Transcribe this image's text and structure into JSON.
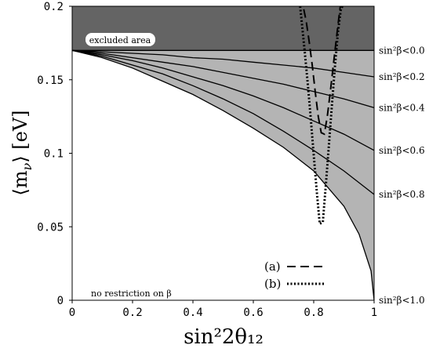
{
  "chart_data": {
    "type": "line",
    "title": "",
    "xlabel": "sin²2θ₁₂",
    "ylabel_main": "⟨m",
    "ylabel_sub": "ν",
    "ylabel_tail": "⟩ [eV]",
    "xlim": [
      0,
      1
    ],
    "ylim": [
      0,
      0.2
    ],
    "x_ticks": [
      "0",
      "0.2",
      "0.4",
      "0.6",
      "0.8",
      "1"
    ],
    "y_ticks": [
      "0",
      "0.05",
      "0.1",
      "0.15",
      "0.2"
    ],
    "excluded_area": {
      "label": "excluded area",
      "y_min": 0.17,
      "y_max": 0.2,
      "color": "#646464"
    },
    "allowed_region_color": "#b4b4b4",
    "m0": 0.17,
    "series": [
      {
        "name": "sin²β<0.0",
        "x": [
          0,
          1
        ],
        "y": [
          0.17,
          0.17
        ]
      },
      {
        "name": "sin²β<0.2",
        "x": [
          0,
          0.1,
          0.2,
          0.3,
          0.4,
          0.5,
          0.6,
          0.7,
          0.8,
          0.9,
          1.0
        ],
        "y": [
          0.17,
          0.169,
          0.168,
          0.167,
          0.165,
          0.164,
          0.162,
          0.16,
          0.158,
          0.155,
          0.152
        ]
      },
      {
        "name": "sin²β<0.4",
        "x": [
          0,
          0.1,
          0.2,
          0.3,
          0.4,
          0.5,
          0.6,
          0.7,
          0.8,
          0.9,
          1.0
        ],
        "y": [
          0.17,
          0.168,
          0.165,
          0.162,
          0.159,
          0.155,
          0.151,
          0.147,
          0.142,
          0.137,
          0.131
        ]
      },
      {
        "name": "sin²β<0.6",
        "x": [
          0,
          0.1,
          0.2,
          0.3,
          0.4,
          0.5,
          0.6,
          0.7,
          0.8,
          0.9,
          1.0
        ],
        "y": [
          0.17,
          0.167,
          0.163,
          0.158,
          0.152,
          0.146,
          0.139,
          0.131,
          0.122,
          0.113,
          0.102
        ]
      },
      {
        "name": "sin²β<0.8",
        "x": [
          0,
          0.1,
          0.2,
          0.3,
          0.4,
          0.5,
          0.6,
          0.7,
          0.8,
          0.9,
          1.0
        ],
        "y": [
          0.17,
          0.166,
          0.16,
          0.154,
          0.146,
          0.137,
          0.127,
          0.115,
          0.102,
          0.088,
          0.072
        ]
      },
      {
        "name": "sin²β<1.0",
        "x": [
          0,
          0.1,
          0.2,
          0.3,
          0.4,
          0.5,
          0.6,
          0.7,
          0.8,
          0.9,
          0.95,
          0.99,
          1.0
        ],
        "y": [
          0.17,
          0.165,
          0.158,
          0.149,
          0.14,
          0.129,
          0.117,
          0.104,
          0.088,
          0.064,
          0.045,
          0.02,
          0.0
        ]
      }
    ],
    "contours": [
      {
        "name": "(a)",
        "style": "dashed",
        "x": [
          0.767,
          0.775,
          0.785,
          0.795,
          0.805,
          0.815,
          0.825,
          0.835,
          0.845,
          0.855,
          0.865,
          0.875,
          0.883,
          0.888
        ],
        "y": [
          0.198,
          0.19,
          0.176,
          0.16,
          0.142,
          0.125,
          0.114,
          0.113,
          0.125,
          0.142,
          0.16,
          0.178,
          0.192,
          0.2
        ]
      },
      {
        "name": "(b)",
        "style": "dotted",
        "x": [
          0.755,
          0.76,
          0.77,
          0.78,
          0.79,
          0.8,
          0.81,
          0.82,
          0.83,
          0.84,
          0.85,
          0.86,
          0.87,
          0.88,
          0.89,
          0.895
        ],
        "y": [
          0.2,
          0.19,
          0.17,
          0.148,
          0.124,
          0.099,
          0.074,
          0.052,
          0.053,
          0.078,
          0.105,
          0.132,
          0.158,
          0.182,
          0.198,
          0.2
        ]
      }
    ],
    "legend": {
      "placement": "bottom-right",
      "entries": [
        {
          "label": "(a)",
          "style": "dashed"
        },
        {
          "label": "(b)",
          "style": "dotted"
        }
      ]
    },
    "annotation": "no restriction on β",
    "grid": false
  }
}
